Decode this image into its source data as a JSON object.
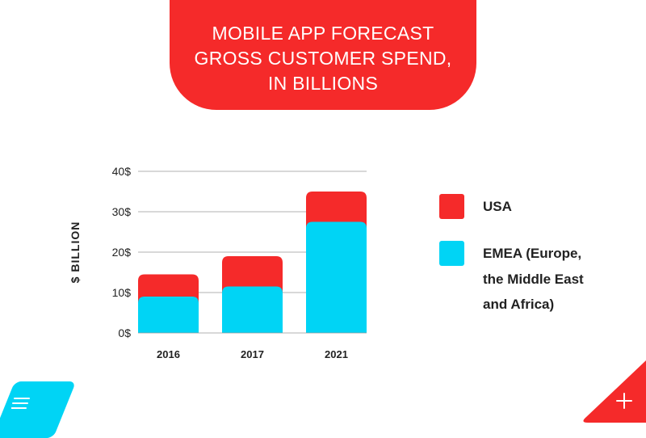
{
  "banner": {
    "lines": [
      "MOBILE APP FORECAST",
      "GROSS CUSTOMER SPEND,",
      "IN BILLIONS"
    ]
  },
  "colors": {
    "usa": "#f52a2a",
    "emea": "#00d4f5",
    "grid": "#999999",
    "text": "#222222"
  },
  "chart_data": {
    "type": "bar",
    "stacked": true,
    "title": "MOBILE APP FORECAST GROSS CUSTOMER SPEND, IN BILLIONS",
    "xlabel": "",
    "ylabel": "$ BILLION",
    "ylim": [
      0,
      40
    ],
    "yticks": [
      0,
      10,
      20,
      30,
      40
    ],
    "ytick_labels": [
      "0$",
      "10$",
      "20$",
      "30$",
      "40$"
    ],
    "grid": true,
    "legend_position": "right",
    "categories": [
      "2016",
      "2017",
      "2021"
    ],
    "series": [
      {
        "name": "EMEA (Europe, the Middle East and Africa)",
        "color": "#00d4f5",
        "values": [
          9,
          11.5,
          27.5
        ]
      },
      {
        "name": "USA",
        "color": "#f52a2a",
        "values": [
          5.5,
          7.5,
          7.5
        ]
      }
    ]
  },
  "legend": {
    "usa_label": "USA",
    "emea_lines": [
      "EMEA (Europe,",
      "the Middle East",
      "and Africa)"
    ]
  },
  "icons": {
    "menu": "menu-icon",
    "plus": "plus-icon"
  }
}
